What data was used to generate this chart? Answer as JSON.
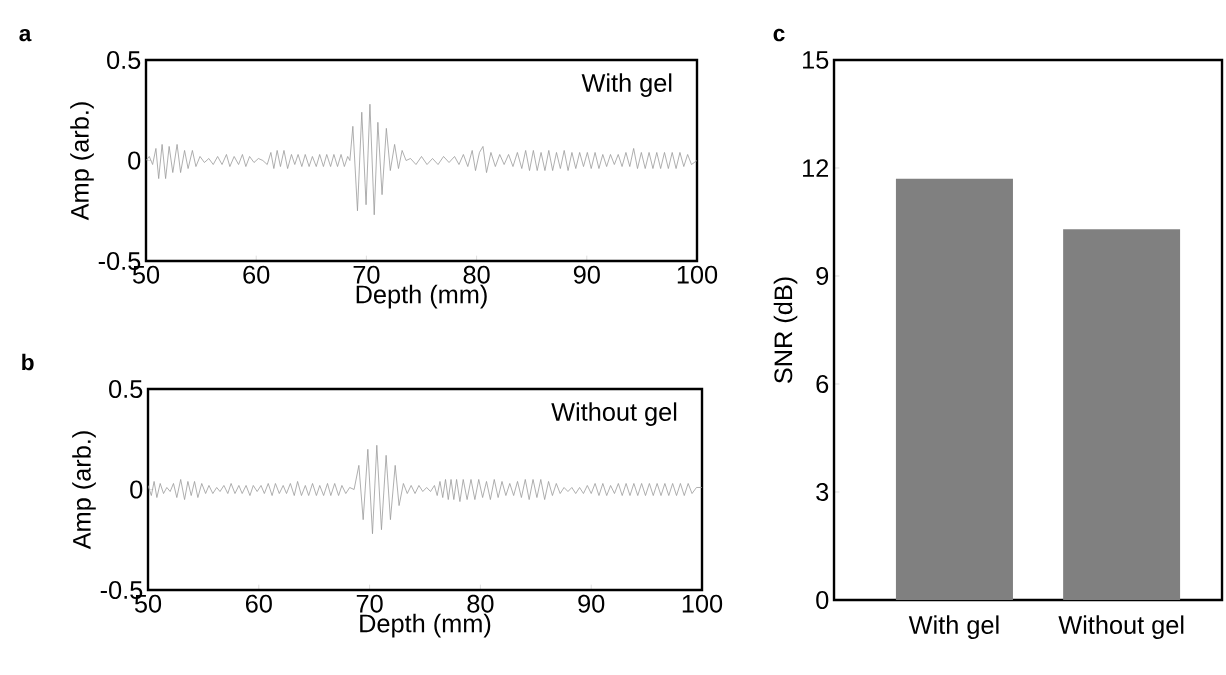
{
  "chart_data": [
    {
      "type": "line",
      "title": "a",
      "xlabel": "Depth (mm)",
      "ylabel": "Amp (arb.)",
      "annotations": [
        "With gel"
      ],
      "xlim": [
        50,
        100
      ],
      "xticks": [
        50,
        60,
        70,
        80,
        90,
        100
      ],
      "ylim": [
        -0.5,
        0.5
      ],
      "yticks": [
        -0.5,
        0,
        0.5
      ],
      "x": [
        50,
        50.3,
        50.6,
        50.9,
        51.15,
        51.46,
        51.78,
        52.1,
        52.43,
        52.82,
        53.14,
        53.5,
        53.82,
        54.21,
        54.53,
        54.9,
        55.3,
        55.7,
        56.1,
        56.5,
        56.9,
        57.3,
        57.61,
        58.0,
        58.4,
        58.75,
        59.06,
        59.4,
        59.8,
        60.2,
        60.6,
        61.0,
        61.33,
        61.6,
        61.9,
        62.2,
        62.52,
        62.85,
        63.2,
        63.5,
        63.8,
        64.14,
        64.45,
        64.8,
        65.1,
        65.45,
        65.76,
        66.1,
        66.4,
        66.75,
        67.05,
        67.38,
        67.7,
        68.0,
        68.3,
        68.5,
        68.77,
        69.19,
        69.58,
        69.97,
        70.32,
        70.71,
        71.04,
        71.42,
        71.81,
        72.17,
        72.56,
        72.91,
        73.24,
        73.6,
        74.0,
        74.5,
        75.0,
        75.5,
        76.0,
        76.5,
        77.0,
        77.5,
        78.0,
        78.4,
        78.8,
        79.2,
        79.6,
        79.9,
        80.26,
        80.58,
        80.9,
        81.3,
        81.7,
        82.1,
        82.5,
        82.9,
        83.3,
        83.7,
        84.1,
        84.45,
        84.8,
        85.15,
        85.5,
        85.85,
        86.2,
        86.55,
        86.9,
        87.25,
        87.6,
        87.95,
        88.3,
        88.65,
        89.0,
        89.35,
        89.7,
        90.05,
        90.4,
        90.75,
        91.1,
        91.45,
        91.8,
        92.15,
        92.5,
        92.85,
        93.2,
        93.55,
        93.9,
        94.25,
        94.6,
        94.95,
        95.3,
        95.65,
        96.0,
        96.35,
        96.7,
        97.05,
        97.4,
        97.75,
        98.1,
        98.45,
        98.8,
        99.15,
        99.5,
        100
      ],
      "series": [
        {
          "color": "#9a9a9a",
          "values": [
            0,
            0.02,
            -0.02,
            0.06,
            -0.09,
            0.08,
            -0.09,
            0.07,
            -0.06,
            0.08,
            -0.06,
            0.05,
            -0.04,
            0.05,
            -0.03,
            0.02,
            -0.01,
            0.01,
            -0.02,
            0.02,
            -0.02,
            0.03,
            -0.03,
            0.02,
            -0.02,
            0.03,
            -0.03,
            0.02,
            -0.01,
            0.01,
            0,
            -0.02,
            0.04,
            -0.04,
            0.05,
            -0.03,
            0.05,
            -0.04,
            0.03,
            -0.02,
            0.03,
            -0.03,
            0.03,
            -0.03,
            0.02,
            -0.03,
            0.03,
            -0.03,
            0.03,
            -0.03,
            0.03,
            -0.03,
            0.03,
            -0.03,
            0.02,
            0,
            0.17,
            -0.25,
            0.24,
            -0.22,
            0.28,
            -0.27,
            0.19,
            -0.17,
            0.16,
            -0.05,
            0.08,
            -0.04,
            0.05,
            0,
            0.01,
            -0.02,
            0.02,
            -0.02,
            0.01,
            -0.02,
            0.02,
            -0.01,
            0.02,
            -0.02,
            0.03,
            -0.03,
            0.05,
            -0.05,
            0.04,
            0.07,
            -0.06,
            0.04,
            -0.03,
            0.03,
            -0.02,
            0.03,
            -0.03,
            0.04,
            -0.04,
            0.05,
            -0.05,
            0.05,
            -0.05,
            0.04,
            -0.05,
            0.05,
            -0.05,
            0.04,
            -0.04,
            0.05,
            -0.05,
            0.04,
            -0.04,
            0.04,
            -0.03,
            0.04,
            -0.04,
            0.04,
            -0.04,
            0.03,
            -0.03,
            0.03,
            -0.02,
            0.03,
            -0.03,
            0.04,
            -0.03,
            0.06,
            -0.04,
            0.04,
            -0.04,
            0.04,
            -0.04,
            0.04,
            -0.04,
            0.04,
            -0.04,
            0.04,
            -0.04,
            0.04,
            -0.03,
            0.03,
            -0.02,
            0
          ]
        }
      ]
    },
    {
      "type": "line",
      "title": "b",
      "xlabel": "Depth (mm)",
      "ylabel": "Amp (arb.)",
      "annotations": [
        "Without gel"
      ],
      "xlim": [
        50,
        100
      ],
      "xticks": [
        50,
        60,
        70,
        80,
        90,
        100
      ],
      "ylim": [
        -0.5,
        0.5
      ],
      "yticks": [
        -0.5,
        0,
        0.5
      ],
      "x": [
        50,
        50.3,
        50.55,
        50.8,
        51.1,
        51.4,
        51.7,
        52.0,
        52.3,
        52.6,
        52.95,
        53.3,
        53.6,
        53.9,
        54.2,
        54.5,
        54.85,
        55.2,
        55.5,
        55.85,
        56.2,
        56.5,
        56.85,
        57.2,
        57.5,
        57.85,
        58.2,
        58.5,
        58.85,
        59.2,
        59.5,
        59.85,
        60.2,
        60.5,
        60.85,
        61.2,
        61.5,
        61.85,
        62.2,
        62.5,
        62.85,
        63.2,
        63.5,
        63.85,
        64.2,
        64.5,
        64.85,
        65.2,
        65.5,
        65.85,
        66.2,
        66.5,
        66.85,
        67.2,
        67.5,
        67.85,
        68.2,
        68.6,
        69.03,
        69.42,
        69.84,
        70.26,
        70.65,
        71.07,
        71.49,
        71.88,
        72.31,
        72.66,
        73.05,
        73.4,
        73.75,
        74.1,
        74.45,
        74.8,
        75.15,
        75.5,
        75.85,
        76.1,
        76.35,
        76.6,
        76.85,
        77.1,
        77.35,
        77.6,
        77.85,
        78.15,
        78.45,
        78.8,
        79.15,
        79.5,
        79.85,
        80.2,
        80.55,
        80.9,
        81.25,
        81.6,
        81.95,
        82.3,
        82.65,
        83.0,
        83.35,
        83.7,
        84.05,
        84.4,
        84.75,
        85.1,
        85.45,
        85.8,
        86.15,
        86.5,
        86.85,
        87.2,
        87.55,
        87.9,
        88.25,
        88.6,
        88.95,
        89.3,
        89.65,
        90.0,
        90.35,
        90.7,
        91.05,
        91.4,
        91.75,
        92.1,
        92.45,
        92.8,
        93.15,
        93.5,
        93.85,
        94.2,
        94.55,
        94.9,
        95.25,
        95.6,
        95.95,
        96.3,
        96.65,
        97.0,
        97.35,
        97.7,
        98.05,
        98.4,
        98.75,
        99.1,
        99.5,
        100
      ],
      "series": [
        {
          "color": "#9a9a9a",
          "values": [
            0.02,
            -0.03,
            0.04,
            -0.04,
            0.03,
            -0.02,
            0.01,
            -0.01,
            0.03,
            -0.04,
            0.05,
            -0.05,
            0.04,
            -0.03,
            0.04,
            -0.04,
            0.03,
            -0.02,
            0.02,
            -0.02,
            0.01,
            -0.01,
            0.02,
            -0.02,
            0.03,
            -0.02,
            0.02,
            -0.02,
            0.02,
            -0.03,
            0.02,
            -0.01,
            0.02,
            -0.02,
            0.03,
            -0.03,
            0.03,
            -0.02,
            0.02,
            -0.02,
            0.03,
            -0.03,
            0.04,
            -0.03,
            0.02,
            -0.03,
            0.03,
            -0.03,
            0.02,
            -0.03,
            0.03,
            -0.03,
            0.03,
            -0.03,
            0.02,
            -0.02,
            0.01,
            0,
            0.12,
            -0.15,
            0.2,
            -0.22,
            0.22,
            -0.2,
            0.17,
            -0.15,
            0.12,
            -0.08,
            0.03,
            -0.02,
            0.02,
            -0.02,
            0.02,
            -0.01,
            0.01,
            -0.01,
            0.02,
            -0.03,
            0.04,
            -0.04,
            0.05,
            -0.05,
            0.05,
            -0.05,
            0.05,
            -0.06,
            0.05,
            -0.05,
            0.05,
            -0.05,
            0.05,
            -0.04,
            0.04,
            -0.05,
            0.05,
            -0.04,
            0.04,
            -0.03,
            0.03,
            -0.03,
            0.04,
            -0.04,
            0.05,
            -0.05,
            0.05,
            -0.04,
            0.05,
            -0.05,
            0.04,
            -0.03,
            0.03,
            -0.02,
            0.01,
            -0.01,
            0.01,
            -0.02,
            0.01,
            -0.02,
            0.02,
            -0.02,
            0.03,
            -0.03,
            0.03,
            -0.03,
            0.02,
            -0.02,
            0.03,
            -0.03,
            0.03,
            -0.03,
            0.03,
            -0.03,
            0.03,
            -0.03,
            0.03,
            -0.03,
            0.03,
            -0.03,
            0.03,
            -0.03,
            0.03,
            -0.03,
            0.03,
            -0.03,
            0.03,
            -0.02,
            0.01,
            0.01
          ]
        }
      ]
    },
    {
      "type": "bar",
      "title": "c",
      "ylabel": "SNR (dB)",
      "categories": [
        "With gel",
        "Without gel"
      ],
      "values": [
        11.7,
        10.3
      ],
      "color": "#808080",
      "ylim": [
        0,
        15
      ],
      "yticks": [
        0,
        3,
        6,
        9,
        12,
        15
      ]
    }
  ]
}
